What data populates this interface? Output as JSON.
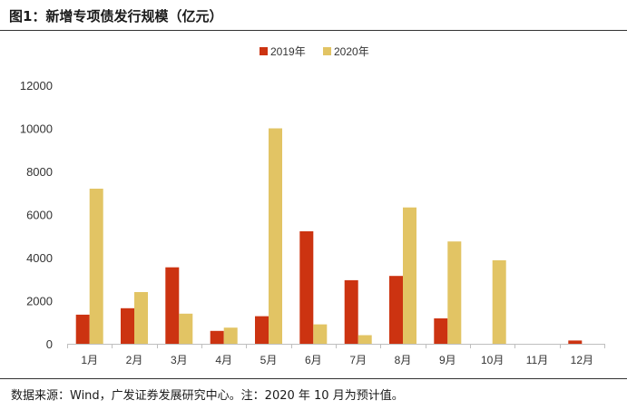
{
  "figure": {
    "title": "图1：新增专项债发行规模（亿元）",
    "source": "数据来源：Wind，广发证券发展研究中心。注：2020 年 10 月为预计值。"
  },
  "colors": {
    "series_2019": "#CC3311",
    "series_2020": "#E2C464",
    "axis": "#BFBFBF",
    "text": "#333333"
  },
  "chart_data": {
    "type": "bar",
    "title": "图1：新增专项债发行规模（亿元）",
    "xlabel": "",
    "ylabel": "",
    "categories": [
      "1月",
      "2月",
      "3月",
      "4月",
      "5月",
      "6月",
      "7月",
      "8月",
      "9月",
      "10月",
      "11月",
      "12月"
    ],
    "series": [
      {
        "name": "2019年",
        "values": [
          1350,
          1650,
          3550,
          600,
          1280,
          5220,
          2950,
          3150,
          1180,
          0,
          0,
          150
        ]
      },
      {
        "name": "2020年",
        "values": [
          7200,
          2400,
          1400,
          750,
          10000,
          900,
          400,
          6330,
          4750,
          3880,
          0,
          0
        ]
      }
    ],
    "ylim": [
      0,
      12000
    ],
    "yticks": [
      0,
      2000,
      4000,
      6000,
      8000,
      10000,
      12000
    ],
    "grid": false,
    "legend_position": "top-center"
  }
}
